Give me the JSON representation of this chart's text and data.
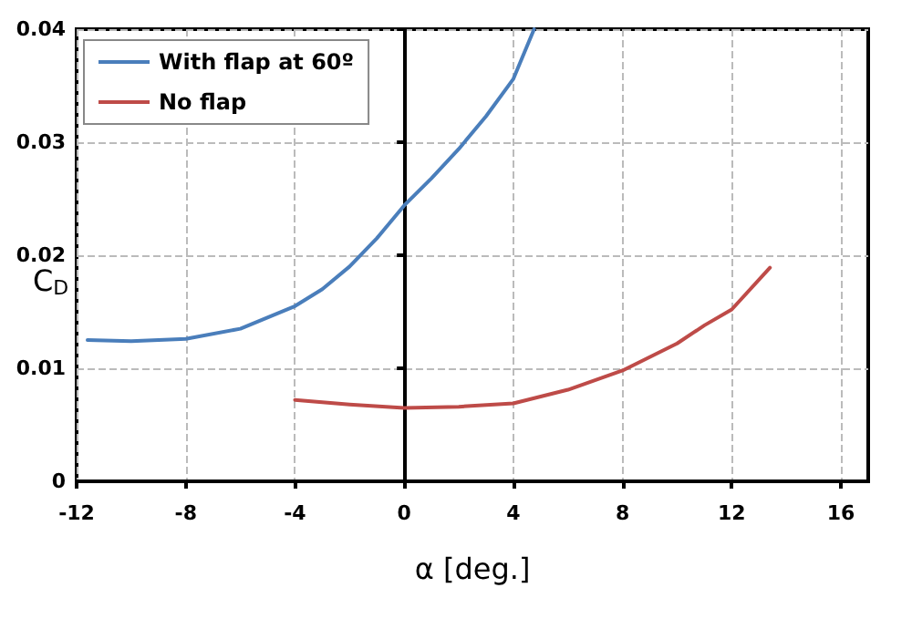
{
  "chart_data": {
    "type": "line",
    "xlabel": "α [deg.]",
    "ylabel": "C$_{D}$",
    "xlim": [
      -12,
      17
    ],
    "xticks": [
      -12,
      -8,
      -4,
      0,
      4,
      8,
      12,
      16
    ],
    "ylim": [
      0,
      0.04
    ],
    "yticks": [
      0,
      0.01,
      0.02,
      0.03,
      0.04
    ],
    "grid": true,
    "legend": "top left",
    "marker": "none",
    "line_style": "solid",
    "series": [
      {
        "name": "With flap at 60º",
        "color": "#4a7ebb",
        "x": [
          -11.6,
          -10,
          -8,
          -6,
          -4,
          -3,
          -2,
          -1,
          0,
          1,
          2,
          3,
          4,
          4.76
        ],
        "values": [
          0.0125,
          0.0124,
          0.0126,
          0.0135,
          0.0155,
          0.017,
          0.019,
          0.0215,
          0.0244,
          0.0268,
          0.0294,
          0.0323,
          0.0356,
          0.04
        ]
      },
      {
        "name": "No flap",
        "color": "#be4b48",
        "x": [
          -4,
          -2,
          0,
          2,
          4,
          6,
          8,
          10,
          11,
          12,
          13.4
        ],
        "values": [
          0.0072,
          0.0068,
          0.0065,
          0.0066,
          0.0069,
          0.0081,
          0.0098,
          0.0122,
          0.0138,
          0.0152,
          0.0189
        ]
      }
    ]
  }
}
